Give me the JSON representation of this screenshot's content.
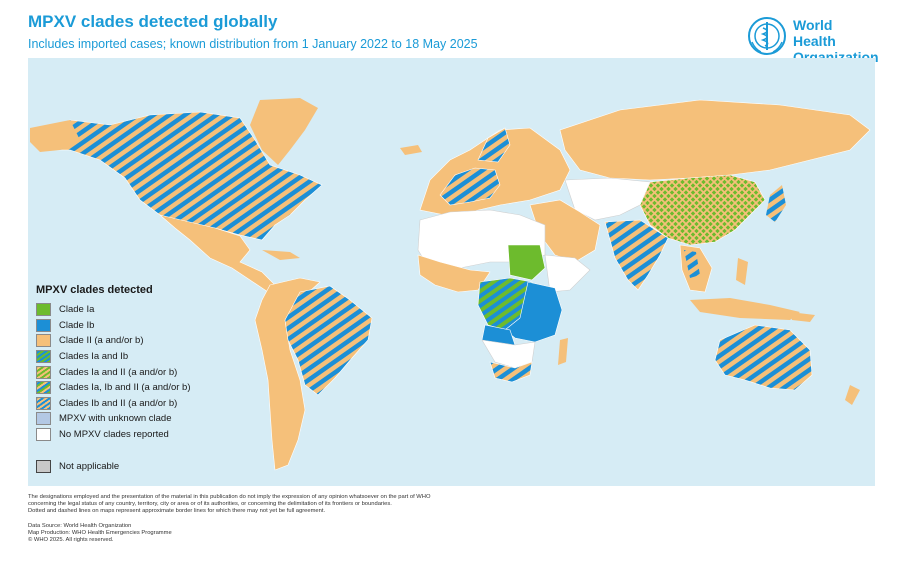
{
  "header": {
    "title": "MPXV clades detected globally",
    "subtitle": "Includes imported cases; known distribution from 1 January 2022 to 18 May 2025"
  },
  "logo": {
    "line1": "World Health",
    "line2": "Organization",
    "icon": "who-emblem-icon"
  },
  "colors": {
    "ocean": "#d6ecf5",
    "clade_ia": "#6dbb2d",
    "clade_ib": "#1c8fd6",
    "clade_ii": "#f5c07a",
    "unknown": "#b3c8e4",
    "none": "#ffffff",
    "not_applicable": "#c8c8c8"
  },
  "legend": {
    "title": "MPXV clades detected",
    "items": [
      {
        "label": "Clade Ia"
      },
      {
        "label": "Clade Ib"
      },
      {
        "label": "Clade II (a and/or b)"
      },
      {
        "label": "Clades Ia and Ib"
      },
      {
        "label": "Clades Ia and II (a and/or b)"
      },
      {
        "label": "Clades Ia, Ib and II (a and/or b)"
      },
      {
        "label": "Clades Ib and II (a and/or b)"
      },
      {
        "label": "MPXV with unknown clade"
      },
      {
        "label": "No MPXV clades reported"
      }
    ],
    "not_applicable": "Not applicable"
  },
  "footer": {
    "disclaimer": [
      "The designations employed and the presentation of the material in this publication do not imply the expression of any opinion whatsoever on the part of WHO",
      "concerning the legal status of any country, territory, city or area or of its authorities, or concerning the delimitation of its frontiers or boundaries.",
      "Dotted and dashed lines on maps represent approximate border lines for which there may not yet be full agreement."
    ],
    "credits": [
      "Data Source: World Health Organization",
      "Map Production: WHO Health Emergencies Programme",
      "© WHO 2025. All rights reserved."
    ]
  }
}
